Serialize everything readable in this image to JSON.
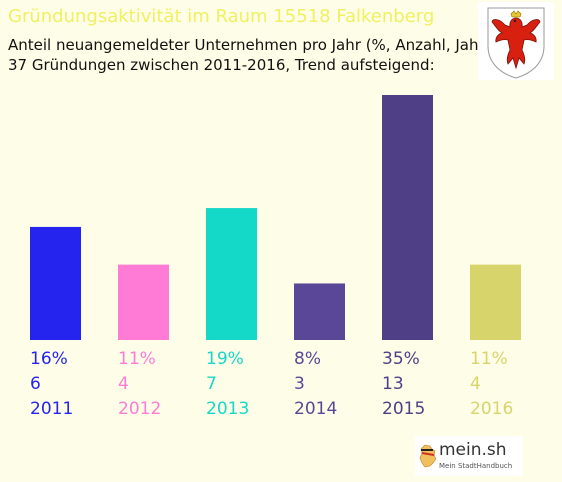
{
  "header": {
    "title": "Gründungsaktivität im Raum 15518 Falkenberg",
    "subtitle_line1": "Anteil neuangemeldeter Unternehmen pro Jahr (%, Anzahl, Jahr)",
    "subtitle_line2": "37 Gründungen zwischen 2011-2016, Trend aufsteigend:"
  },
  "logo": {
    "main": "mein.sh",
    "sub": "Mein StadtHandbuch"
  },
  "chart_data": {
    "type": "bar",
    "title": "Gründungsaktivität im Raum 15518 Falkenberg",
    "categories": [
      "2011",
      "2012",
      "2013",
      "2014",
      "2015",
      "2016"
    ],
    "percent_labels": [
      "16%",
      "11%",
      "19%",
      "8%",
      "35%",
      "11%"
    ],
    "values": [
      6,
      4,
      7,
      3,
      13,
      4
    ],
    "colors": [
      "#2424ee",
      "#ff7bd5",
      "#14d8c8",
      "#5b4797",
      "#4f3f87",
      "#d8d46c"
    ],
    "ylim": [
      0,
      13
    ],
    "grid": false,
    "legend": "none"
  }
}
